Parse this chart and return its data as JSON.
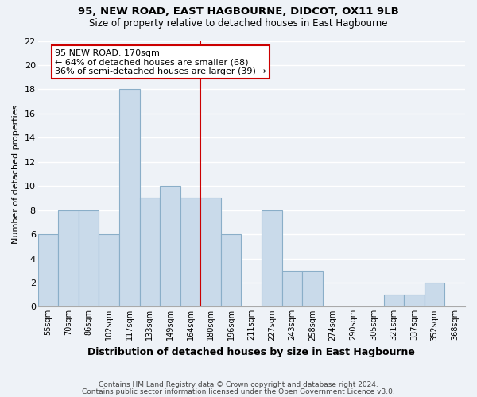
{
  "title": "95, NEW ROAD, EAST HAGBOURNE, DIDCOT, OX11 9LB",
  "subtitle": "Size of property relative to detached houses in East Hagbourne",
  "xlabel": "Distribution of detached houses by size in East Hagbourne",
  "ylabel": "Number of detached properties",
  "footnote1": "Contains HM Land Registry data © Crown copyright and database right 2024.",
  "footnote2": "Contains public sector information licensed under the Open Government Licence v3.0.",
  "bar_labels": [
    "55sqm",
    "70sqm",
    "86sqm",
    "102sqm",
    "117sqm",
    "133sqm",
    "149sqm",
    "164sqm",
    "180sqm",
    "196sqm",
    "211sqm",
    "227sqm",
    "243sqm",
    "258sqm",
    "274sqm",
    "290sqm",
    "305sqm",
    "321sqm",
    "337sqm",
    "352sqm",
    "368sqm"
  ],
  "bar_values": [
    6,
    8,
    8,
    6,
    18,
    9,
    10,
    9,
    9,
    6,
    0,
    8,
    3,
    3,
    0,
    0,
    0,
    1,
    1,
    2,
    0
  ],
  "bar_color": "#c9daea",
  "bar_edge_color": "#8aaec8",
  "vline_color": "#cc0000",
  "vline_x": 7.5,
  "ylim": [
    0,
    22
  ],
  "yticks": [
    0,
    2,
    4,
    6,
    8,
    10,
    12,
    14,
    16,
    18,
    20,
    22
  ],
  "annotation_title": "95 NEW ROAD: 170sqm",
  "annotation_line1": "← 64% of detached houses are smaller (68)",
  "annotation_line2": "36% of semi-detached houses are larger (39) →",
  "annotation_box_color": "#ffffff",
  "annotation_border_color": "#cc0000",
  "bg_color": "#eef2f7",
  "grid_color": "#ffffff",
  "title_fontsize": 9.5,
  "subtitle_fontsize": 8.5,
  "ylabel_fontsize": 8,
  "xlabel_fontsize": 9
}
